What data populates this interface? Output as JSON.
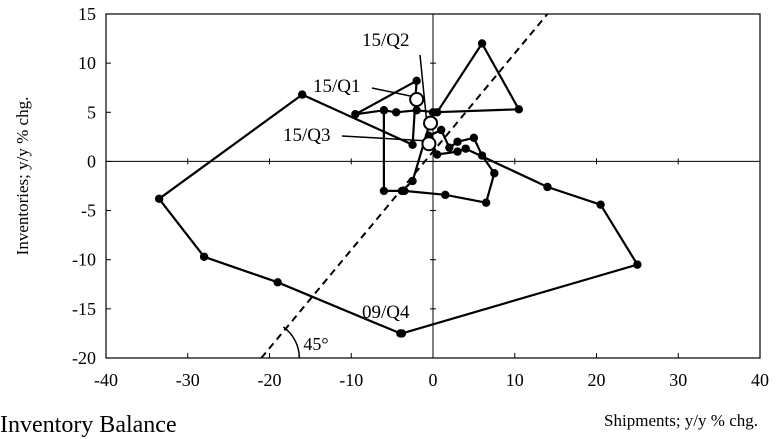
{
  "chart_data": {
    "type": "line",
    "title": "",
    "xlabel": "Shipments; y/y % chg.",
    "ylabel": "Inventories; y/y % chg.",
    "xlim": [
      -40,
      40
    ],
    "ylim": [
      -20,
      15
    ],
    "xticks": [
      -40,
      -30,
      -20,
      -10,
      0,
      10,
      20,
      30,
      40
    ],
    "yticks": [
      -20,
      -15,
      -10,
      -5,
      0,
      5,
      10,
      15
    ],
    "grid": false,
    "series": [
      {
        "marker": "filled-circle",
        "points": [
          {
            "x": -4.0,
            "y": -17.5
          },
          {
            "x": -19.0,
            "y": -12.3
          },
          {
            "x": -28.0,
            "y": -9.7
          },
          {
            "x": -33.5,
            "y": -3.8
          },
          {
            "x": -16.0,
            "y": 6.8
          },
          {
            "x": -2.5,
            "y": 1.7
          },
          {
            "x": -2.0,
            "y": 8.2
          },
          {
            "x": -9.5,
            "y": 4.8
          },
          {
            "x": -6.0,
            "y": 5.2
          },
          {
            "x": -6.0,
            "y": -3.0
          },
          {
            "x": -3.5,
            "y": -3.0
          },
          {
            "x": 1.5,
            "y": -3.4
          },
          {
            "x": 6.5,
            "y": -4.2
          },
          {
            "x": 7.5,
            "y": -1.2
          },
          {
            "x": 6.0,
            "y": 0.6
          },
          {
            "x": 5.0,
            "y": 2.4
          },
          {
            "x": 3.0,
            "y": 2.0
          },
          {
            "x": 2.0,
            "y": 1.4
          },
          {
            "x": 1.0,
            "y": 3.2
          },
          {
            "x": -0.5,
            "y": 2.6
          },
          {
            "x": 0.5,
            "y": 0.7
          },
          {
            "x": 3.0,
            "y": 1.0
          },
          {
            "x": 4.0,
            "y": 1.3
          },
          {
            "x": 14.0,
            "y": -2.6
          },
          {
            "x": 20.5,
            "y": -4.4
          },
          {
            "x": 25.0,
            "y": -10.5
          },
          {
            "x": -3.8,
            "y": -17.5
          }
        ]
      },
      {
        "marker": "filled-circle",
        "points": [
          {
            "x": -6.0,
            "y": 5.2
          },
          {
            "x": -4.5,
            "y": 5.0
          },
          {
            "x": -2.0,
            "y": 5.2
          },
          {
            "x": 0.5,
            "y": 5.0
          },
          {
            "x": 6.0,
            "y": 12.0
          },
          {
            "x": 10.5,
            "y": 5.3
          },
          {
            "x": 0.0,
            "y": 5.0
          },
          {
            "x": -2.5,
            "y": -2.0
          },
          {
            "x": -3.8,
            "y": -3.0
          }
        ]
      }
    ],
    "highlighted_points": [
      {
        "label": "15/Q1",
        "x": -2.0,
        "y": 6.3
      },
      {
        "label": "15/Q2",
        "x": -0.3,
        "y": 3.9
      },
      {
        "label": "15/Q3",
        "x": -0.5,
        "y": 1.8
      }
    ],
    "annotations": {
      "point_label": "09/Q4",
      "reference_line": "45-degree",
      "angle_label": "45°"
    },
    "caption": "Inventory Balance"
  }
}
